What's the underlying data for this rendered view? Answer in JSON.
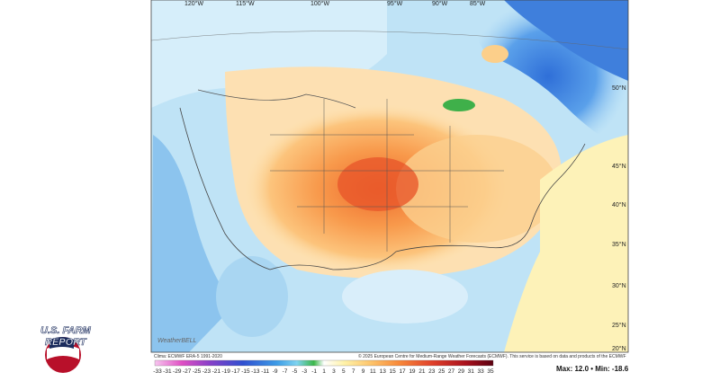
{
  "map": {
    "longitude_labels": [
      "120°W",
      "115°W",
      "100°W",
      "95°W",
      "90°W",
      "85°W"
    ],
    "latitude_labels": [
      "50°N",
      "45°N",
      "40°N",
      "35°N",
      "30°N",
      "25°N",
      "20°N"
    ],
    "climatology_note": "Clima: ECMWF ERA-5 1991-2020",
    "copyright": "© 2025 European Centre for Medium-Range Weather Forecasts (ECMWF). This service is based on data and products of the ECMWF",
    "watermark": "WeatherBELL"
  },
  "legend": {
    "labels": [
      -33,
      -31,
      -29,
      -27,
      -25,
      -23,
      -21,
      -19,
      -17,
      -15,
      -13,
      -11,
      -9,
      -7,
      -5,
      -3,
      -1,
      1,
      3,
      5,
      7,
      9,
      11,
      13,
      15,
      17,
      19,
      21,
      23,
      25,
      27,
      29,
      31,
      33,
      35
    ],
    "max_min": "Max: 12.0 • Min: -18.6"
  },
  "logo": {
    "line1": "U.S. FARM",
    "line2": "REPORT"
  }
}
